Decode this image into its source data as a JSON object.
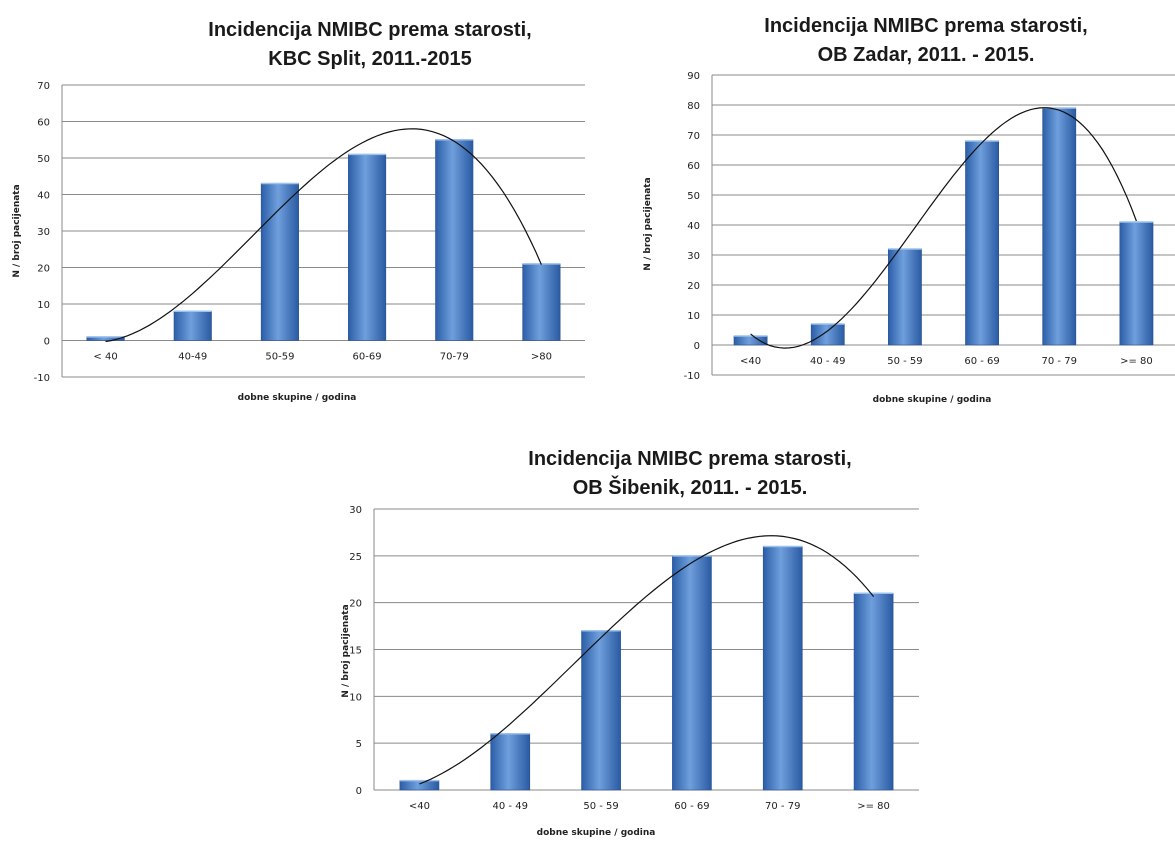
{
  "chart_data": [
    {
      "type": "bar",
      "title_lines": [
        "Incidencija NMIBC prema starosti,",
        "KBC Split, 2011.-2015"
      ],
      "xlabel": "dobne skupine / godina",
      "ylabel": "N / broj pacijenata",
      "ylim": [
        -10,
        70
      ],
      "yticks": [
        -10,
        0,
        10,
        20,
        30,
        40,
        50,
        60,
        70
      ],
      "grid": true,
      "legend": "none",
      "trendline": "polynomial",
      "bar_color": "#3c70b8",
      "categories": [
        "< 40",
        "40-49",
        "50-59",
        "60-69",
        "70-79",
        ">80"
      ],
      "values": [
        1,
        8,
        43,
        51,
        55,
        21
      ]
    },
    {
      "type": "bar",
      "title_lines": [
        "Incidencija NMIBC prema starosti,",
        "OB Zadar, 2011. - 2015."
      ],
      "xlabel": "dobne skupine / godina",
      "ylabel": "N / broj pacijenata",
      "ylim": [
        -10,
        90
      ],
      "yticks": [
        -10,
        0,
        10,
        20,
        30,
        40,
        50,
        60,
        70,
        80,
        90
      ],
      "grid": true,
      "legend": "none",
      "trendline": "polynomial",
      "bar_color": "#3c70b8",
      "categories": [
        "<40",
        "40 - 49",
        "50 - 59",
        "60 - 69",
        "70 - 79",
        ">= 80"
      ],
      "values": [
        3,
        7,
        32,
        68,
        79,
        41
      ]
    },
    {
      "type": "bar",
      "title_lines": [
        "Incidencija NMIBC prema starosti,",
        "OB Šibenik, 2011. - 2015."
      ],
      "xlabel": "dobne skupine / godina",
      "ylabel": "N / broj pacijenata",
      "ylim": [
        0,
        30
      ],
      "yticks": [
        0,
        5,
        10,
        15,
        20,
        25,
        30
      ],
      "grid": true,
      "legend": "none",
      "trendline": "polynomial",
      "bar_color": "#3c70b8",
      "categories": [
        "<40",
        "40 - 49",
        "50 - 59",
        "60 - 69",
        "70 - 79",
        ">= 80"
      ],
      "values": [
        1,
        6,
        17,
        25,
        26,
        21
      ]
    }
  ]
}
